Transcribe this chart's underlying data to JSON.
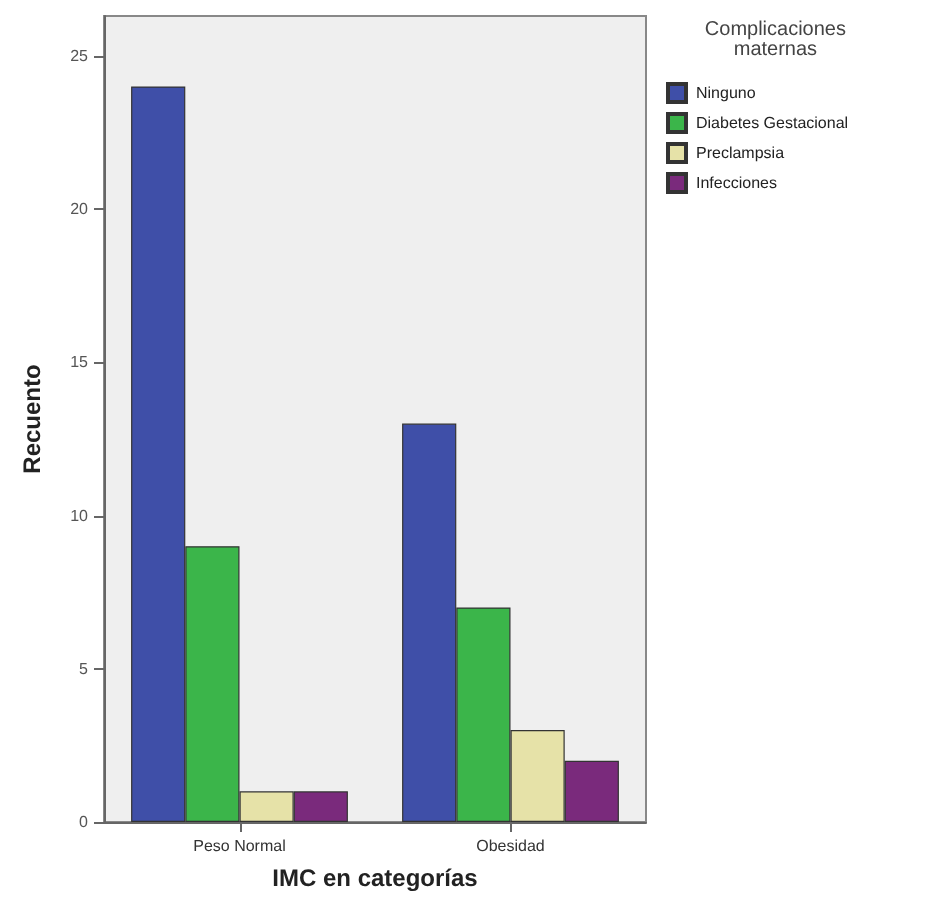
{
  "chart_data": {
    "type": "bar",
    "xlabel": "IMC en categorías",
    "ylabel": "Recuento",
    "legend_title": "Complicaciones maternas",
    "categories": [
      "Peso Normal",
      "Obesidad"
    ],
    "series": [
      {
        "name": "Ninguno",
        "color": "#3f4fa8",
        "values": [
          24,
          13
        ]
      },
      {
        "name": "Diabetes Gestacional",
        "color": "#3bb54a",
        "values": [
          9,
          7
        ]
      },
      {
        "name": "Preclampsia",
        "color": "#e6e2a8",
        "values": [
          1,
          3
        ]
      },
      {
        "name": "Infecciones",
        "color": "#7a2a7c",
        "values": [
          1,
          2
        ]
      }
    ],
    "ylim": [
      0,
      26.3
    ],
    "yticks": [
      0,
      5,
      10,
      15,
      20,
      25
    ],
    "grid": false,
    "legend": "right"
  }
}
